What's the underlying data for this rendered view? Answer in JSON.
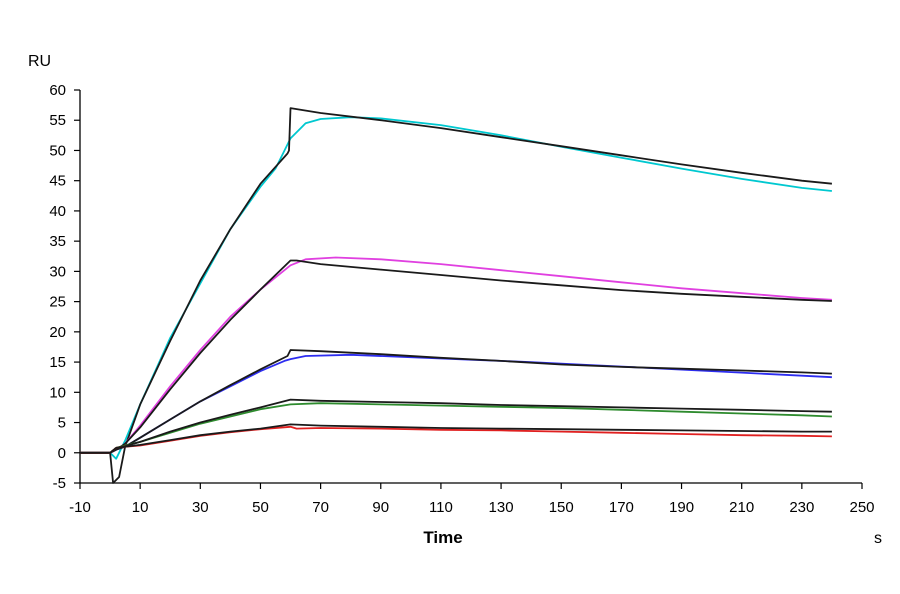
{
  "chart_data": {
    "type": "line",
    "xlabel": "Time",
    "x_unit": "s",
    "ylabel": "RU",
    "xlim": [
      -10,
      250
    ],
    "ylim": [
      -5,
      60
    ],
    "x_ticks": [
      "-10",
      "10",
      "30",
      "50",
      "70",
      "90",
      "110",
      "130",
      "150",
      "170",
      "190",
      "210",
      "230",
      "250"
    ],
    "y_ticks": [
      "60",
      "55",
      "50",
      "45",
      "40",
      "35",
      "30",
      "25",
      "20",
      "15",
      "10",
      "5",
      "0",
      "-5"
    ],
    "grid": false,
    "legend": "none",
    "series": [
      {
        "color": "#00c8d0",
        "points": [
          [
            -10,
            0
          ],
          [
            0,
            0
          ],
          [
            2,
            -1
          ],
          [
            5,
            2
          ],
          [
            10,
            8
          ],
          [
            20,
            19
          ],
          [
            30,
            28
          ],
          [
            40,
            37
          ],
          [
            50,
            44
          ],
          [
            55,
            47
          ],
          [
            58,
            50
          ],
          [
            60,
            52
          ],
          [
            65,
            54.5
          ],
          [
            70,
            55.2
          ],
          [
            80,
            55.5
          ],
          [
            90,
            55.3
          ],
          [
            110,
            54.2
          ],
          [
            130,
            52.5
          ],
          [
            150,
            50.6
          ],
          [
            170,
            48.8
          ],
          [
            190,
            47
          ],
          [
            210,
            45.3
          ],
          [
            230,
            43.8
          ],
          [
            240,
            43.3
          ]
        ]
      },
      {
        "color": "#1a1a1a",
        "points": [
          [
            -10,
            0
          ],
          [
            0,
            0
          ],
          [
            1,
            -5
          ],
          [
            3,
            -4
          ],
          [
            5,
            1
          ],
          [
            10,
            8
          ],
          [
            20,
            18.5
          ],
          [
            30,
            28.5
          ],
          [
            40,
            37
          ],
          [
            50,
            44.5
          ],
          [
            59,
            49.5
          ],
          [
            59.5,
            50
          ],
          [
            60,
            57
          ],
          [
            70,
            56.2
          ],
          [
            90,
            55
          ],
          [
            110,
            53.7
          ],
          [
            130,
            52.2
          ],
          [
            150,
            50.7
          ],
          [
            170,
            49.2
          ],
          [
            190,
            47.7
          ],
          [
            210,
            46.3
          ],
          [
            230,
            45
          ],
          [
            240,
            44.5
          ]
        ]
      },
      {
        "color": "#e040e0",
        "points": [
          [
            -10,
            0
          ],
          [
            0,
            0
          ],
          [
            2,
            0.5
          ],
          [
            5,
            1.5
          ],
          [
            10,
            4.5
          ],
          [
            20,
            11
          ],
          [
            30,
            17
          ],
          [
            40,
            22.5
          ],
          [
            50,
            27
          ],
          [
            55,
            29
          ],
          [
            60,
            31
          ],
          [
            65,
            32
          ],
          [
            75,
            32.3
          ],
          [
            90,
            32
          ],
          [
            110,
            31.2
          ],
          [
            130,
            30.2
          ],
          [
            150,
            29.2
          ],
          [
            170,
            28.2
          ],
          [
            190,
            27.2
          ],
          [
            210,
            26.4
          ],
          [
            230,
            25.6
          ],
          [
            240,
            25.3
          ]
        ]
      },
      {
        "color": "#1a1a1a",
        "points": [
          [
            -10,
            0
          ],
          [
            0,
            0
          ],
          [
            2,
            0.5
          ],
          [
            5,
            1.5
          ],
          [
            10,
            4.2
          ],
          [
            20,
            10.5
          ],
          [
            30,
            16.5
          ],
          [
            40,
            22
          ],
          [
            50,
            27
          ],
          [
            60,
            31.8
          ],
          [
            62,
            31.8
          ],
          [
            70,
            31.2
          ],
          [
            90,
            30.3
          ],
          [
            110,
            29.4
          ],
          [
            130,
            28.5
          ],
          [
            150,
            27.7
          ],
          [
            170,
            26.9
          ],
          [
            190,
            26.3
          ],
          [
            210,
            25.8
          ],
          [
            230,
            25.3
          ],
          [
            240,
            25.1
          ]
        ]
      },
      {
        "color": "#2d2df0",
        "points": [
          [
            -10,
            0
          ],
          [
            0,
            0
          ],
          [
            2,
            0.5
          ],
          [
            5,
            1
          ],
          [
            10,
            2.5
          ],
          [
            20,
            5.5
          ],
          [
            30,
            8.5
          ],
          [
            40,
            11
          ],
          [
            50,
            13.5
          ],
          [
            58,
            15.2
          ],
          [
            60,
            15.5
          ],
          [
            65,
            16
          ],
          [
            80,
            16.2
          ],
          [
            100,
            15.8
          ],
          [
            120,
            15.4
          ],
          [
            140,
            15
          ],
          [
            160,
            14.5
          ],
          [
            180,
            14
          ],
          [
            200,
            13.5
          ],
          [
            220,
            13
          ],
          [
            240,
            12.5
          ]
        ]
      },
      {
        "color": "#1a1a1a",
        "points": [
          [
            -10,
            0
          ],
          [
            0,
            0
          ],
          [
            2,
            0.5
          ],
          [
            5,
            1
          ],
          [
            10,
            2.5
          ],
          [
            20,
            5.5
          ],
          [
            30,
            8.5
          ],
          [
            40,
            11.2
          ],
          [
            50,
            13.8
          ],
          [
            59,
            16
          ],
          [
            60,
            17
          ],
          [
            70,
            16.8
          ],
          [
            90,
            16.3
          ],
          [
            110,
            15.7
          ],
          [
            130,
            15.2
          ],
          [
            150,
            14.6
          ],
          [
            170,
            14.2
          ],
          [
            190,
            13.9
          ],
          [
            210,
            13.6
          ],
          [
            230,
            13.3
          ],
          [
            240,
            13.1
          ]
        ]
      },
      {
        "color": "#2e8b2e",
        "points": [
          [
            -10,
            0
          ],
          [
            0,
            0
          ],
          [
            2,
            0.8
          ],
          [
            5,
            1.2
          ],
          [
            10,
            1.8
          ],
          [
            20,
            3.3
          ],
          [
            30,
            4.8
          ],
          [
            40,
            6
          ],
          [
            50,
            7.2
          ],
          [
            60,
            8
          ],
          [
            70,
            8.2
          ],
          [
            90,
            8
          ],
          [
            110,
            7.8
          ],
          [
            130,
            7.6
          ],
          [
            150,
            7.4
          ],
          [
            170,
            7.1
          ],
          [
            190,
            6.8
          ],
          [
            210,
            6.5
          ],
          [
            230,
            6.2
          ],
          [
            240,
            6.0
          ]
        ]
      },
      {
        "color": "#1a1a1a",
        "points": [
          [
            -10,
            0
          ],
          [
            0,
            0
          ],
          [
            2,
            0.8
          ],
          [
            5,
            1.1
          ],
          [
            10,
            1.8
          ],
          [
            20,
            3.5
          ],
          [
            30,
            5
          ],
          [
            40,
            6.3
          ],
          [
            50,
            7.5
          ],
          [
            60,
            8.8
          ],
          [
            70,
            8.6
          ],
          [
            90,
            8.4
          ],
          [
            110,
            8.2
          ],
          [
            130,
            7.9
          ],
          [
            150,
            7.7
          ],
          [
            170,
            7.5
          ],
          [
            190,
            7.3
          ],
          [
            210,
            7.1
          ],
          [
            230,
            6.9
          ],
          [
            240,
            6.8
          ]
        ]
      },
      {
        "color": "#e02020",
        "points": [
          [
            -10,
            0
          ],
          [
            0,
            0
          ],
          [
            2,
            0.8
          ],
          [
            5,
            1
          ],
          [
            10,
            1.2
          ],
          [
            20,
            2
          ],
          [
            30,
            2.8
          ],
          [
            40,
            3.4
          ],
          [
            50,
            3.9
          ],
          [
            60,
            4.3
          ],
          [
            62,
            4
          ],
          [
            70,
            4.1
          ],
          [
            90,
            4
          ],
          [
            110,
            3.8
          ],
          [
            130,
            3.7
          ],
          [
            150,
            3.5
          ],
          [
            170,
            3.3
          ],
          [
            190,
            3.1
          ],
          [
            210,
            2.9
          ],
          [
            230,
            2.8
          ],
          [
            240,
            2.7
          ]
        ]
      },
      {
        "color": "#1a1a1a",
        "points": [
          [
            -10,
            0
          ],
          [
            0,
            0
          ],
          [
            2,
            0.8
          ],
          [
            5,
            1
          ],
          [
            10,
            1.3
          ],
          [
            20,
            2.1
          ],
          [
            30,
            2.9
          ],
          [
            40,
            3.5
          ],
          [
            50,
            4
          ],
          [
            60,
            4.7
          ],
          [
            70,
            4.5
          ],
          [
            90,
            4.3
          ],
          [
            110,
            4.1
          ],
          [
            130,
            4
          ],
          [
            150,
            3.9
          ],
          [
            170,
            3.8
          ],
          [
            190,
            3.7
          ],
          [
            210,
            3.6
          ],
          [
            230,
            3.5
          ],
          [
            240,
            3.5
          ]
        ]
      }
    ]
  }
}
